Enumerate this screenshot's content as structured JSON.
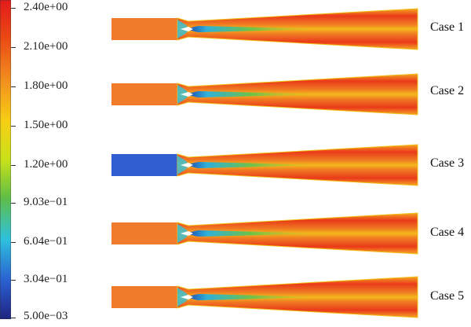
{
  "colorbar": {
    "labels": [
      "2.40e+00",
      "2.10e+00",
      "1.80e+00",
      "1.50e+00",
      "1.20e+00",
      "9.03e−01",
      "6.04e−01",
      "3.04e−01",
      "5.00e−03"
    ],
    "colors": [
      "#e31a1c",
      "#ef6a12",
      "#f5a21b",
      "#e8e000",
      "#7cc83a",
      "#4fc4d8",
      "#2a6fd3",
      "#1f2a8a"
    ]
  },
  "cases": [
    {
      "label": "Case 1",
      "inlet": "#f07b2a"
    },
    {
      "label": "Case 2",
      "inlet": "#f07b2a"
    },
    {
      "label": "Case 3",
      "inlet": "#2f5fd0"
    },
    {
      "label": "Case 4",
      "inlet": "#f07b2a"
    },
    {
      "label": "Case 5",
      "inlet": "#f07b2a"
    }
  ]
}
